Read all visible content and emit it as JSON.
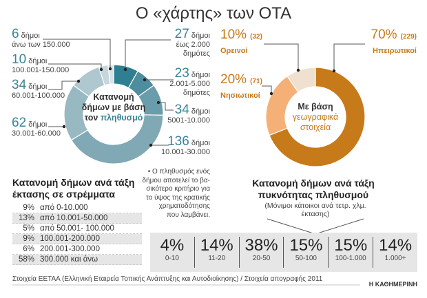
{
  "title": "Ο «χάρτης» των ΟΤΑ",
  "unit_label": "δήμοι",
  "chart_data": [
    {
      "type": "pie",
      "title": "Κατανομή δήμων με βάση τον πληθυσμό",
      "title_main": "Κατανομή δήμων με βάση τον",
      "title_highlight": "πληθυσμό",
      "slices": [
        {
          "value": 27,
          "label": "έως 2.000 δημότες",
          "color": "#2f7f92"
        },
        {
          "value": 23,
          "label": "2.001-5.000 δημότες",
          "color": "#4e8d9d"
        },
        {
          "value": 34,
          "label": "5001-10.000",
          "color": "#6a9dab"
        },
        {
          "value": 136,
          "label": "10.001-30.000",
          "color": "#80a9b5"
        },
        {
          "value": 62,
          "label": "30.001-60.000",
          "color": "#98b8c2"
        },
        {
          "value": 34,
          "label": "60.001-100.000",
          "color": "#afc7cf"
        },
        {
          "value": 10,
          "label": "100.001-150.000",
          "color": "#c5d6dc"
        },
        {
          "value": 6,
          "label": "άνω των 150.000",
          "color": "#d7e3e7"
        }
      ]
    },
    {
      "type": "pie",
      "title": "Με βάση γεωγραφικά στοιχεία",
      "title_main": "Με βάση",
      "title_highlight": "γεωγραφικά στοιχεία",
      "slices": [
        {
          "value": 229,
          "percent": "70%",
          "count": "(229)",
          "label": "Ηπειρωτικοί",
          "color": "#c77a1a"
        },
        {
          "value": 71,
          "percent": "20%",
          "count": "(71)",
          "label": "Νησιωτικοί",
          "color": "#f5b077"
        },
        {
          "value": 32,
          "percent": "10%",
          "count": "(32)",
          "label": "Ορεινοί",
          "color": "#f0e0d0"
        }
      ]
    },
    {
      "type": "table",
      "title": "Κατανομή δήμων ανά τάξη έκτασης σε στρέμματα",
      "rows": [
        {
          "percent": "9%",
          "range": "από 0-10.000"
        },
        {
          "percent": "13%",
          "range": "από 10.001-50.000"
        },
        {
          "percent": "5%",
          "range": "από 50.001- 100.000"
        },
        {
          "percent": "9%",
          "range": "100.001-200.000"
        },
        {
          "percent": "6%",
          "range": "200.001-300.000"
        },
        {
          "percent": "58%",
          "range": "300.000 και άνω"
        }
      ]
    },
    {
      "type": "table",
      "title": "Κατανομή δήμων ανά τάξη πυκνότητας πληθυσμού",
      "subtitle": "(Μόνιμοι κάτοικοι ανά τετρ. χλμ. έκτασης)",
      "cells": [
        {
          "percent": "4%",
          "range": "0-10"
        },
        {
          "percent": "14%",
          "range": "11-20"
        },
        {
          "percent": "38%",
          "range": "20-50"
        },
        {
          "percent": "15%",
          "range": "50-100"
        },
        {
          "percent": "15%",
          "range": "100-1.000"
        },
        {
          "percent": "14%",
          "range": "1.000+"
        }
      ]
    }
  ],
  "note": [
    "• Ο πληθυσμός ενός",
    "δήμου αποτελεί το βα-",
    "σικότερο κριτήριο για",
    "το ύψος της κρατικής",
    "χρηματοδότησης",
    "που λαμβάνει."
  ],
  "footer": "Στοιχεία ΕΕΤΑΑ (Ελληνική Εταιρεία Τοπικής Ανάπτυξης και Αυτοδιοίκησης) / Στοιχεία απογραφής 2011",
  "brand": "Η ΚΑΘΗΜΕΡΙΝΗ"
}
